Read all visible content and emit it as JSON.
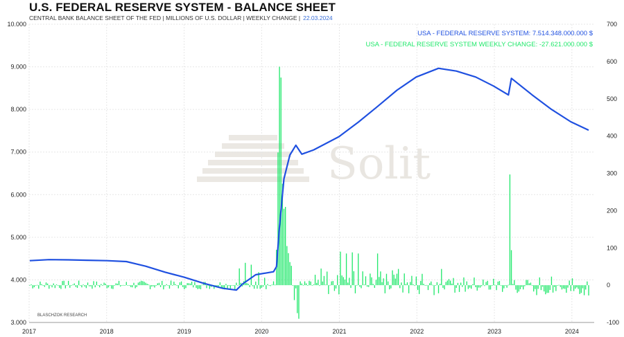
{
  "header": {
    "title": "U.S. FEDERAL RESERVE SYSTEM - BALANCE SHEET",
    "subtitle": "CENTRAL BANK BALANCE SHEET OF THE FED | MILLIONS OF U.S. DOLLAR | WEEKLY CHANGE |",
    "date": "22.03.2024"
  },
  "watermark": "Solit",
  "source": "BLASCHZOK RESEARCH",
  "colors": {
    "balance": "#1f50e0",
    "weekly": "#21e86b",
    "grid": "#e6e6e6"
  },
  "chart_data": {
    "type": "line+bar",
    "x_ticks": [
      "2017",
      "2018",
      "2019",
      "2020",
      "2021",
      "2022",
      "2023",
      "2024"
    ],
    "xlim": [
      "2017-01-01",
      "2024-04-15"
    ],
    "y_left": {
      "lim": [
        3000,
        10000
      ],
      "ticks": [
        "3.000",
        "4.000",
        "5.000",
        "6.000",
        "7.000",
        "8.000",
        "9.000",
        "10.000"
      ]
    },
    "y_right": {
      "lim": [
        -100,
        700
      ],
      "ticks": [
        "-100",
        "0",
        "100",
        "200",
        "300",
        "400",
        "500",
        "600",
        "700"
      ]
    },
    "series": [
      {
        "name": "USA - FEDERAL RESERVE SYSTEM: 7.514.348.000.000 $",
        "axis": "left",
        "type": "line",
        "points": [
          [
            "2017-01-04",
            4450
          ],
          [
            "2017-04-05",
            4475
          ],
          [
            "2017-07-05",
            4470
          ],
          [
            "2017-10-04",
            4460
          ],
          [
            "2018-01-03",
            4450
          ],
          [
            "2018-04-04",
            4430
          ],
          [
            "2018-07-04",
            4320
          ],
          [
            "2018-10-03",
            4180
          ],
          [
            "2019-01-02",
            4060
          ],
          [
            "2019-04-03",
            3920
          ],
          [
            "2019-07-03",
            3800
          ],
          [
            "2019-09-04",
            3760
          ],
          [
            "2019-10-02",
            3900
          ],
          [
            "2019-12-04",
            4120
          ],
          [
            "2020-02-26",
            4190
          ],
          [
            "2020-03-11",
            4310
          ],
          [
            "2020-03-25",
            5250
          ],
          [
            "2020-04-15",
            6370
          ],
          [
            "2020-05-13",
            6930
          ],
          [
            "2020-06-10",
            7160
          ],
          [
            "2020-07-08",
            6950
          ],
          [
            "2020-09-02",
            7050
          ],
          [
            "2020-12-30",
            7360
          ],
          [
            "2021-03-31",
            7700
          ],
          [
            "2021-06-30",
            8070
          ],
          [
            "2021-09-29",
            8450
          ],
          [
            "2021-12-29",
            8760
          ],
          [
            "2022-04-13",
            8965
          ],
          [
            "2022-07-06",
            8900
          ],
          [
            "2022-10-05",
            8760
          ],
          [
            "2022-12-28",
            8550
          ],
          [
            "2023-03-08",
            8340
          ],
          [
            "2023-03-22",
            8730
          ],
          [
            "2023-06-28",
            8340
          ],
          [
            "2023-09-27",
            8000
          ],
          [
            "2023-12-27",
            7710
          ],
          [
            "2024-03-20",
            7514
          ]
        ]
      },
      {
        "name": "USA - FEDERAL RESERVE SYSTEM WEEKLY CHANGE: -27.621.000.000 $",
        "axis": "right",
        "type": "bar",
        "weekly_spikes": [
          [
            "2019-09-18",
            45
          ],
          [
            "2019-10-16",
            60
          ],
          [
            "2019-11-13",
            55
          ],
          [
            "2019-12-18",
            35
          ],
          [
            "2020-01-15",
            20
          ],
          [
            "2020-03-11",
            95
          ],
          [
            "2020-03-18",
            356
          ],
          [
            "2020-03-25",
            586
          ],
          [
            "2020-04-01",
            557
          ],
          [
            "2020-04-08",
            272
          ],
          [
            "2020-04-15",
            205
          ],
          [
            "2020-04-22",
            210
          ],
          [
            "2020-04-29",
            105
          ],
          [
            "2020-05-06",
            86
          ],
          [
            "2020-05-13",
            62
          ],
          [
            "2020-05-20",
            52
          ],
          [
            "2020-06-03",
            -40
          ],
          [
            "2020-06-17",
            -75
          ],
          [
            "2020-06-24",
            -90
          ],
          [
            "2021-01-06",
            90
          ],
          [
            "2021-02-03",
            85
          ],
          [
            "2021-03-03",
            88
          ],
          [
            "2021-03-31",
            85
          ],
          [
            "2021-06-30",
            85
          ],
          [
            "2023-03-15",
            297
          ],
          [
            "2023-03-22",
            94
          ]
        ],
        "typical_range": [
          -35,
          35
        ],
        "last_value": -27.621
      }
    ],
    "grid": true,
    "legend": "top-right"
  }
}
